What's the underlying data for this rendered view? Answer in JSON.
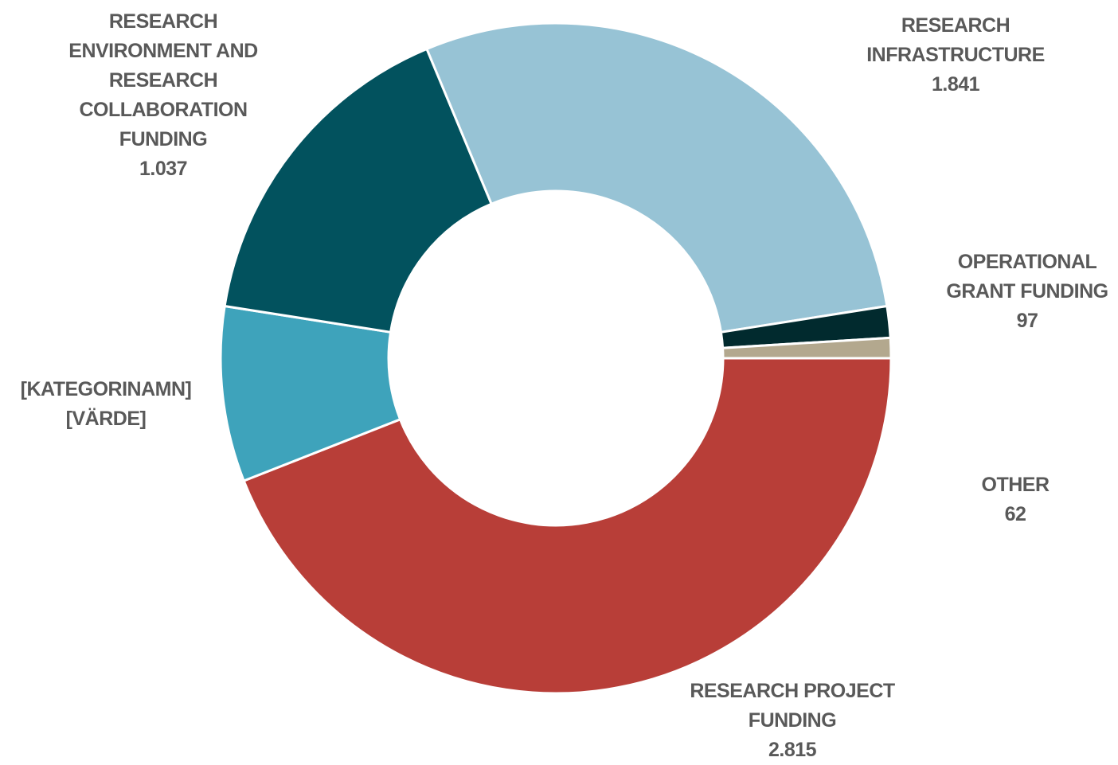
{
  "chart_data": {
    "type": "donut",
    "categories": [
      "RESEARCH PROJECT FUNDING",
      "[KATEGORINAMN]",
      "RESEARCH ENVIRONMENT AND RESEARCH COLLABORATION FUNDING",
      "RESEARCH INFRASTRUCTURE",
      "OPERATIONAL GRANT FUNDING",
      "OTHER"
    ],
    "values": [
      2815,
      540,
      1037,
      1841,
      97,
      62
    ],
    "value_labels": [
      "2.815",
      "[VÄRDE]",
      "1.037",
      "1.841",
      "97",
      "62"
    ],
    "colors": [
      "#b83e38",
      "#3ea3bb",
      "#02525e",
      "#97c3d5",
      "#012a2e",
      "#b3a88e"
    ]
  }
}
